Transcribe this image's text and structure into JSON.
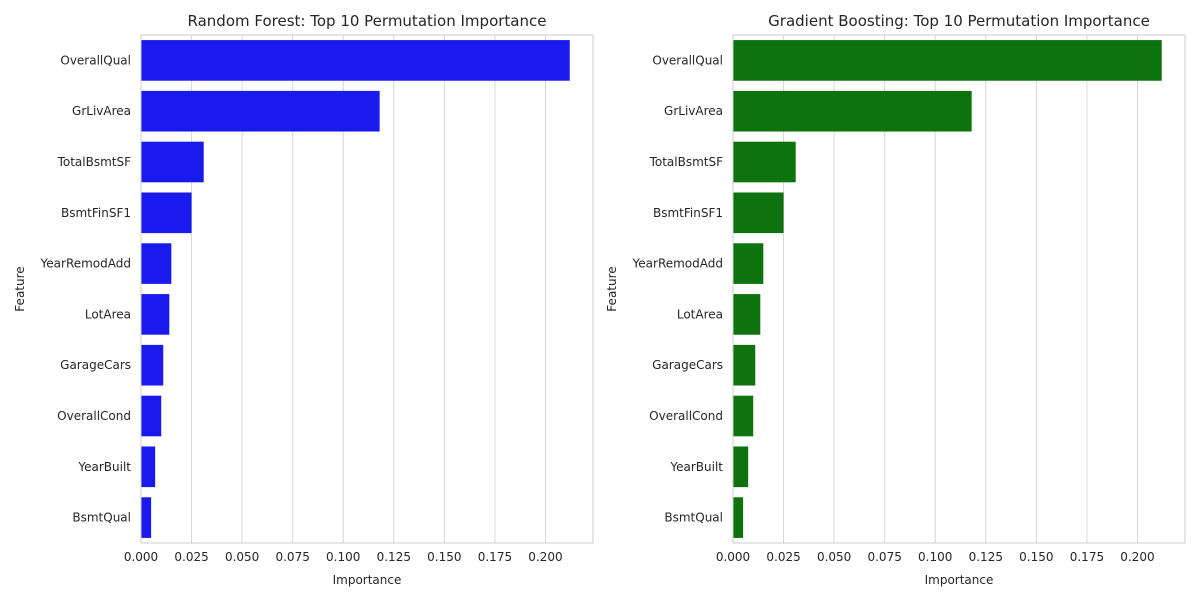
{
  "chart_data": [
    {
      "type": "bar",
      "orientation": "horizontal",
      "title": "Random Forest: Top 10 Permutation Importance",
      "xlabel": "Importance",
      "ylabel": "Feature",
      "categories": [
        "OverallQual",
        "GrLivArea",
        "TotalBsmtSF",
        "BsmtFinSF1",
        "YearRemodAdd",
        "LotArea",
        "GarageCars",
        "OverallCond",
        "YearBuilt",
        "BsmtQual"
      ],
      "values": [
        0.212,
        0.118,
        0.031,
        0.025,
        0.015,
        0.014,
        0.011,
        0.01,
        0.007,
        0.005
      ],
      "xticks": [
        "0.000",
        "0.025",
        "0.050",
        "0.075",
        "0.100",
        "0.125",
        "0.150",
        "0.175",
        "0.200"
      ],
      "xlim": [
        0,
        0.2235
      ],
      "grid": "vertical",
      "color": "#1a1aee"
    },
    {
      "type": "bar",
      "orientation": "horizontal",
      "title": "Gradient Boosting: Top 10 Permutation Importance",
      "xlabel": "Importance",
      "ylabel": "Feature",
      "categories": [
        "OverallQual",
        "GrLivArea",
        "TotalBsmtSF",
        "BsmtFinSF1",
        "YearRemodAdd",
        "LotArea",
        "GarageCars",
        "OverallCond",
        "YearBuilt",
        "BsmtQual"
      ],
      "values": [
        0.212,
        0.118,
        0.031,
        0.025,
        0.015,
        0.0135,
        0.011,
        0.01,
        0.0075,
        0.005
      ],
      "xticks": [
        "0.000",
        "0.025",
        "0.050",
        "0.075",
        "0.100",
        "0.125",
        "0.150",
        "0.175",
        "0.200"
      ],
      "xlim": [
        0,
        0.2235
      ],
      "grid": "vertical",
      "color": "#0e720e"
    }
  ]
}
